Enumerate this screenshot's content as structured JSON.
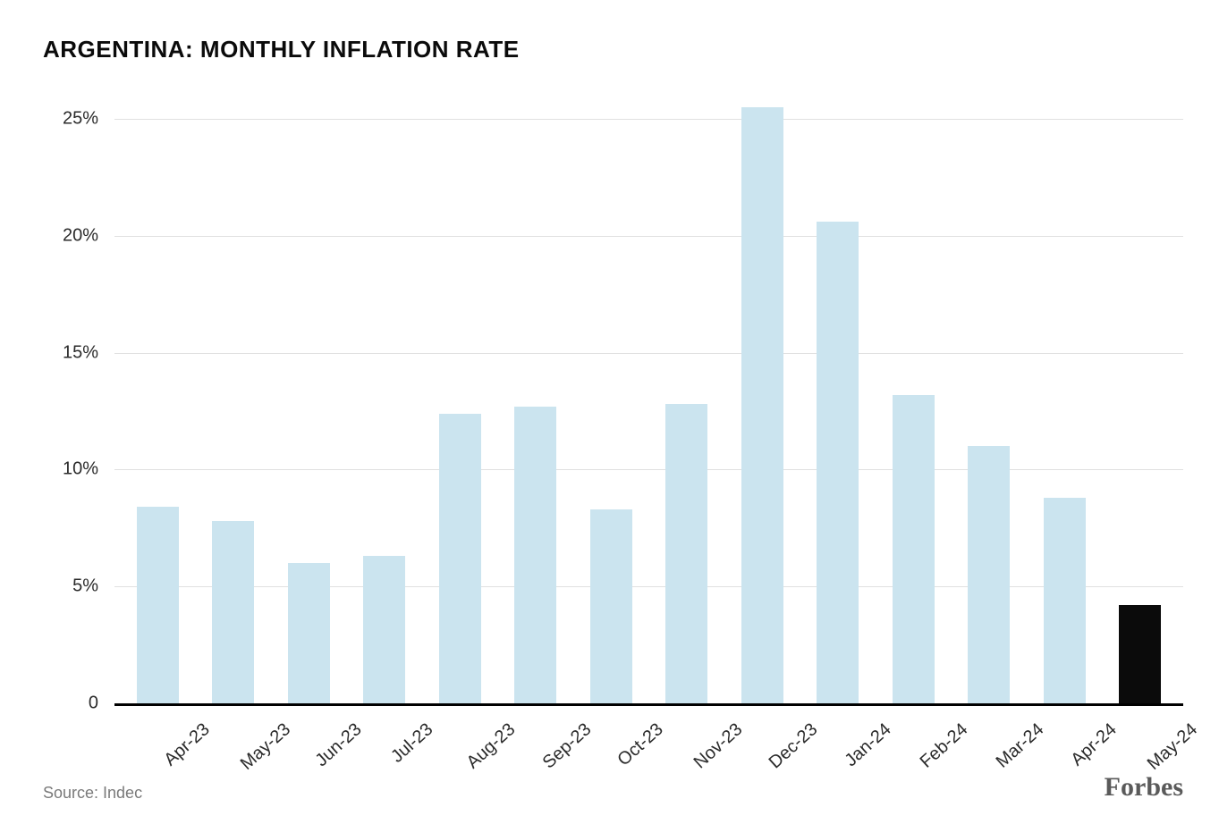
{
  "chart": {
    "type": "bar",
    "title": "ARGENTINA: MONTHLY INFLATION RATE",
    "title_fontsize": 26,
    "title_color": "#0b0b0b",
    "background_color": "#ffffff",
    "grid_color": "#e0e0e0",
    "axis_line_color": "#000000",
    "axis_label_color": "#2b2b2b",
    "tick_fontsize": 20,
    "xlabel_fontsize": 20,
    "xlabel_rotation_deg": -42,
    "bar_width_ratio": 0.56,
    "ylim": [
      0,
      26
    ],
    "yticks": [
      {
        "value": 0,
        "label": "0"
      },
      {
        "value": 5,
        "label": "5%"
      },
      {
        "value": 10,
        "label": "10%"
      },
      {
        "value": 15,
        "label": "15%"
      },
      {
        "value": 20,
        "label": "20%"
      },
      {
        "value": 25,
        "label": "25%"
      }
    ],
    "categories": [
      "Apr-23",
      "May-23",
      "Jun-23",
      "Jul-23",
      "Aug-23",
      "Sep-23",
      "Oct-23",
      "Nov-23",
      "Dec-23",
      "Jan-24",
      "Feb-24",
      "Mar-24",
      "Apr-24",
      "May-24"
    ],
    "values": [
      8.4,
      7.8,
      6.0,
      6.3,
      12.4,
      12.7,
      8.3,
      12.8,
      25.5,
      20.6,
      13.2,
      11.0,
      8.8,
      4.2
    ],
    "bar_colors": [
      "#cbe4ef",
      "#cbe4ef",
      "#cbe4ef",
      "#cbe4ef",
      "#cbe4ef",
      "#cbe4ef",
      "#cbe4ef",
      "#cbe4ef",
      "#cbe4ef",
      "#cbe4ef",
      "#cbe4ef",
      "#cbe4ef",
      "#cbe4ef",
      "#0b0b0b"
    ]
  },
  "footer": {
    "source_label": "Source: Indec",
    "source_color": "#7a7a7a",
    "source_fontsize": 18,
    "brand": "Forbes",
    "brand_color": "#5a5a5a",
    "brand_fontsize": 30
  }
}
